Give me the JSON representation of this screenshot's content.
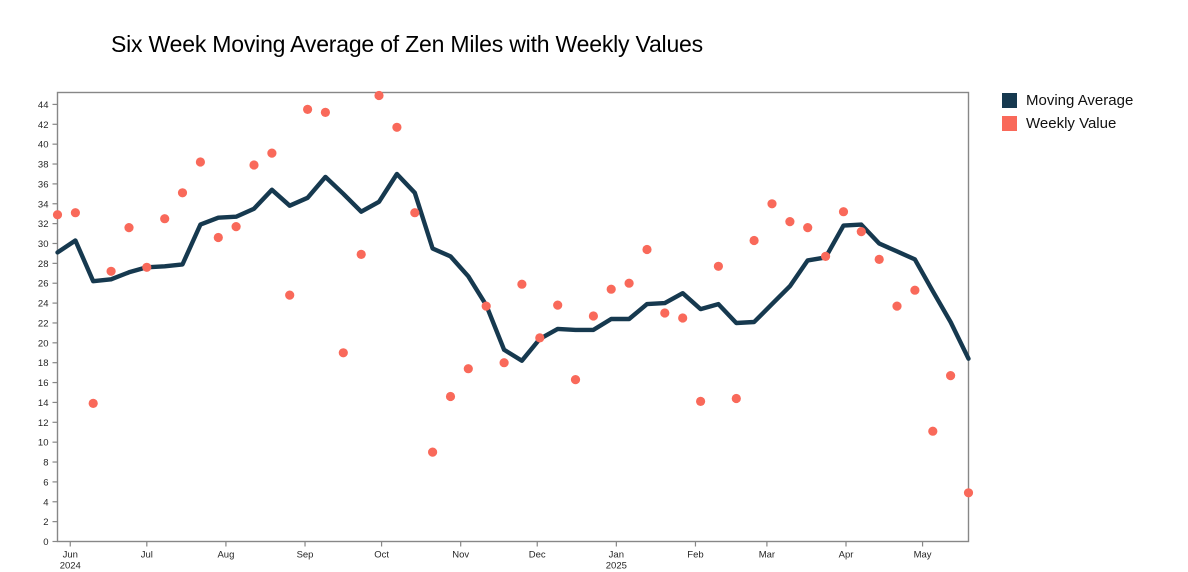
{
  "title": "Six Week Moving Average of Zen Miles with Weekly Values",
  "legend": {
    "items": [
      {
        "label": "Moving Average",
        "color": "#16394f"
      },
      {
        "label": "Weekly Value",
        "color": "#f9695a"
      }
    ]
  },
  "colors": {
    "line": "#16394f",
    "scatter": "#f9695a",
    "axis": "#878787",
    "tick_label": "#262626",
    "background": "#ffffff"
  },
  "chart_data": {
    "type": "line",
    "subtype": "line-with-scatter-overlay",
    "title": "Six Week Moving Average of Zen Miles with Weekly Values",
    "xlabel": "",
    "ylabel": "",
    "x_unit": "weekly points, late May 2024 through mid May 2025",
    "x_total_days": 357,
    "ylim": [
      0,
      45.2
    ],
    "grid": false,
    "legend_position": "outside-top-right",
    "y_ticks": [
      0,
      2,
      4,
      6,
      8,
      10,
      12,
      14,
      16,
      18,
      20,
      22,
      24,
      26,
      28,
      30,
      32,
      34,
      36,
      38,
      40,
      42,
      44
    ],
    "x_ticks": [
      {
        "label": "Jun",
        "sublabel": "2024",
        "day": 5
      },
      {
        "label": "Jul",
        "day": 35
      },
      {
        "label": "Aug",
        "day": 66
      },
      {
        "label": "Sep",
        "day": 97
      },
      {
        "label": "Oct",
        "day": 127
      },
      {
        "label": "Nov",
        "day": 158
      },
      {
        "label": "Dec",
        "day": 188
      },
      {
        "label": "Jan",
        "sublabel": "2025",
        "day": 219
      },
      {
        "label": "Feb",
        "day": 250
      },
      {
        "label": "Mar",
        "day": 278
      },
      {
        "label": "Apr",
        "day": 309
      },
      {
        "label": "May",
        "day": 339
      }
    ],
    "series": [
      {
        "name": "Moving Average",
        "type": "line",
        "color": "#16394f",
        "values": [
          29.1,
          30.3,
          26.2,
          26.4,
          27.1,
          27.6,
          27.7,
          27.9,
          31.9,
          32.6,
          32.7,
          33.5,
          35.4,
          33.8,
          34.6,
          36.7,
          35.0,
          33.2,
          34.2,
          37.0,
          35.1,
          29.5,
          28.7,
          26.7,
          23.8,
          19.3,
          18.2,
          20.4,
          21.4,
          21.3,
          21.3,
          22.4,
          22.4,
          23.9,
          24.0,
          25.0,
          23.4,
          23.9,
          22.0,
          22.1,
          23.9,
          25.7,
          28.3,
          28.6,
          31.8,
          31.9,
          30.0,
          29.2,
          28.4,
          25.2,
          22.1,
          18.4
        ]
      },
      {
        "name": "Weekly Value",
        "type": "scatter",
        "color": "#f9695a",
        "values": [
          32.9,
          33.1,
          13.9,
          27.2,
          31.6,
          27.6,
          32.5,
          35.1,
          38.2,
          30.6,
          31.7,
          37.9,
          39.1,
          24.8,
          43.5,
          43.2,
          19.0,
          28.9,
          44.9,
          41.7,
          33.1,
          9.0,
          14.6,
          17.4,
          23.7,
          18.0,
          25.9,
          20.5,
          23.8,
          16.3,
          22.7,
          25.4,
          26.0,
          29.4,
          23.0,
          22.5,
          14.1,
          27.7,
          14.4,
          30.3,
          34.0,
          32.2,
          31.6,
          28.7,
          33.2,
          31.2,
          28.4,
          23.7,
          25.3,
          11.1,
          16.7,
          4.9
        ]
      }
    ]
  }
}
